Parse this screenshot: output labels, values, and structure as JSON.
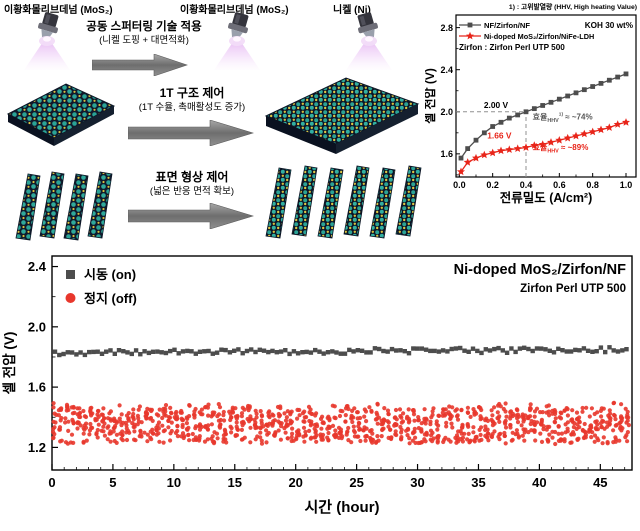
{
  "colors": {
    "gray_series": "#4d4d4d",
    "red_series": "#e8251a",
    "red_scatter": "#e8372c",
    "dashed_line": "#909090",
    "eff_gray": "#595959"
  },
  "diagram": {
    "labels": {
      "target_left": "이황화몰리브데넘 (MoS₂)",
      "target_center": "이황화몰리브데넘 (MoS₂)",
      "target_nickel": "니켈 (Ni)"
    },
    "steps": [
      {
        "title": "공동 스퍼터링 기술 적용",
        "subtitle": "(니켈 도핑 + 대면적화)"
      },
      {
        "title": "1T 구조 제어",
        "subtitle": "(1T 수율, 촉매활성도 증가)"
      },
      {
        "title": "표면 형상 제어",
        "subtitle": "(넓은 반응 면적 확보)"
      }
    ]
  },
  "chart_data": [
    {
      "id": "polarization",
      "type": "line",
      "note": "1) : 고위발열량 (HHV, High heating Value)",
      "xlabel": "전류밀도 (A/cm²)",
      "ylabel": "셀 전압 (V)",
      "xlim": [
        -0.02,
        1.06
      ],
      "ylim": [
        1.38,
        2.92
      ],
      "xticks": [
        0.0,
        0.2,
        0.4,
        0.6,
        0.8,
        1.0
      ],
      "yticks": [
        1.6,
        2.0,
        2.4,
        2.8
      ],
      "legend_koh": "KOH 30 wt%",
      "legend_zirfon": "Zirfon : Zirfon Perl UTP 500",
      "x": [
        0.01,
        0.05,
        0.1,
        0.15,
        0.2,
        0.25,
        0.3,
        0.35,
        0.4,
        0.45,
        0.5,
        0.55,
        0.6,
        0.65,
        0.7,
        0.75,
        0.8,
        0.85,
        0.9,
        0.95,
        1.0
      ],
      "series": [
        {
          "name": "NF/Zirfon/NF",
          "color": "#4d4d4d",
          "marker": "square",
          "values": [
            1.56,
            1.65,
            1.73,
            1.8,
            1.86,
            1.9,
            1.94,
            1.97,
            2.0,
            2.03,
            2.06,
            2.09,
            2.12,
            2.15,
            2.18,
            2.21,
            2.24,
            2.27,
            2.3,
            2.33,
            2.36
          ]
        },
        {
          "name": "Ni-doped MoS₂/Zirfon/NiFe-LDH",
          "color": "#e8251a",
          "marker": "star",
          "values": [
            1.43,
            1.52,
            1.56,
            1.59,
            1.61,
            1.63,
            1.64,
            1.65,
            1.66,
            1.68,
            1.69,
            1.71,
            1.73,
            1.75,
            1.77,
            1.79,
            1.81,
            1.83,
            1.85,
            1.88,
            1.9
          ]
        }
      ],
      "ref_point": {
        "x": 0.4,
        "y_gray": 2.0,
        "y_red": 1.66
      },
      "annotations": {
        "v_gray": "2.00 V",
        "v_red": "1.66 V",
        "eff_gray": [
          "효율",
          "HHV",
          "1)",
          " ≈ ~74%"
        ],
        "eff_red": [
          "효율",
          "HHV",
          "",
          " ≈ ~89%"
        ]
      }
    },
    {
      "id": "stability",
      "type": "scatter",
      "title": "Ni-doped MoS₂/Zirfon/NF",
      "subtitle": "Zirfon Perl UTP 500",
      "xlabel": "시간 (hour)",
      "ylabel": "셀 전압 (V)",
      "xlim": [
        0,
        47.6
      ],
      "ylim": [
        1.05,
        2.47
      ],
      "xticks": [
        0,
        5,
        10,
        15,
        20,
        25,
        30,
        35,
        40,
        45
      ],
      "yticks": [
        1.2,
        1.6,
        2.0,
        2.4
      ],
      "legend": [
        {
          "label": "시동 (on)",
          "color": "#4d4d4d",
          "marker": "square"
        },
        {
          "label": "정지 (off)",
          "color": "#e8372c",
          "marker": "circle"
        }
      ],
      "series_generation": {
        "on": {
          "t_start": 0.25,
          "t_end": 47.4,
          "step": 0.35,
          "y_level": 1.83,
          "y_jitter": 0.018
        },
        "off": {
          "t_start": 0.2,
          "t_end": 47.4,
          "cluster_step": 0.5,
          "points_per_cluster": 12,
          "y_min": 1.22,
          "y_max": 1.52
        }
      }
    }
  ]
}
